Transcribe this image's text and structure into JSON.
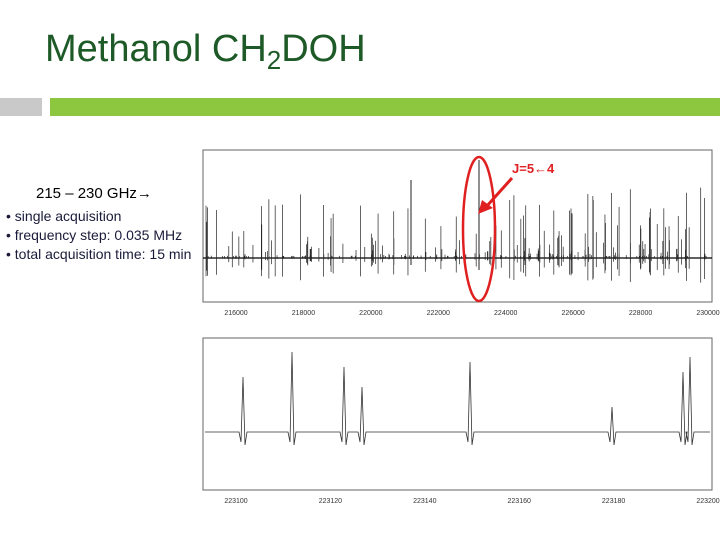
{
  "title": {
    "text": "Methanol CH",
    "subscript": "2",
    "suffix": "DOH"
  },
  "text_block": {
    "heading": "215 – 230 GHz→",
    "bullets": [
      "• single acquisition",
      "• frequency step: 0.035 MHz",
      "• total acquisition time: 15 min"
    ]
  },
  "spectra": [
    {
      "x_labels": [
        "216000",
        "218000",
        "220000",
        "222000",
        "224000",
        "226000",
        "228000",
        "230000"
      ]
    },
    {
      "x_labels": [
        "223100",
        "223120",
        "223140",
        "223160",
        "223180",
        "223200"
      ]
    }
  ],
  "annotation": "J=5←4"
}
